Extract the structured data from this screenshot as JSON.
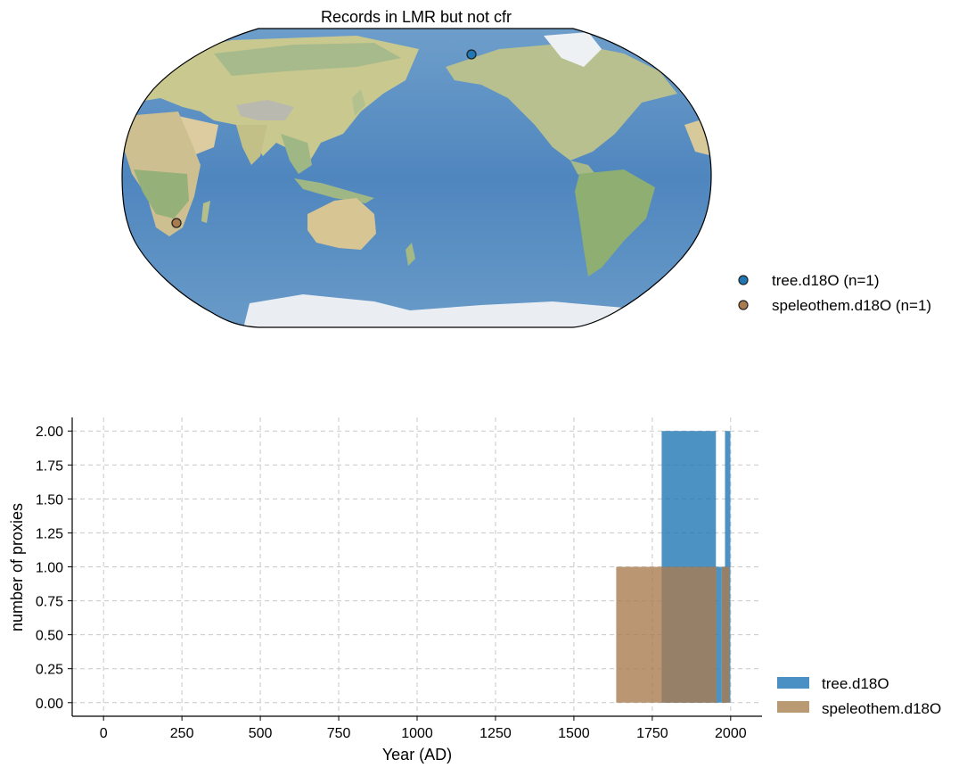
{
  "map": {
    "title": "Records in LMR but not cfr",
    "legend": [
      {
        "label": "tree.d18O (n=1)",
        "color": "#1f77b4"
      },
      {
        "label": "speleothem.d18O (n=1)",
        "color": "#a97c50"
      }
    ],
    "points": [
      {
        "archive": "tree.d18O",
        "lon": -155,
        "lat": 70,
        "color": "#1f77b4"
      },
      {
        "archive": "speleothem.d18O",
        "lon": 20,
        "lat": -27,
        "color": "#a97c50"
      }
    ],
    "projection": "Robinson (centered 180°)"
  },
  "chart_data": {
    "type": "bar",
    "xlabel": "Year (AD)",
    "ylabel": "number of proxies",
    "xlim": [
      -100,
      2100
    ],
    "ylim": [
      -0.1,
      2.1
    ],
    "xticks": [
      0,
      250,
      500,
      750,
      1000,
      1250,
      1500,
      1750,
      2000
    ],
    "xtick_labels": [
      "0",
      "250",
      "500",
      "750",
      "1000",
      "1250",
      "1500",
      "1750",
      "2000"
    ],
    "yticks": [
      0,
      0.25,
      0.5,
      0.75,
      1.0,
      1.25,
      1.5,
      1.75,
      2.0
    ],
    "ytick_labels": [
      "0.00",
      "0.25",
      "0.50",
      "0.75",
      "1.00",
      "1.25",
      "1.50",
      "1.75",
      "2.00"
    ],
    "grid": true,
    "legend_placement": "bottom-right outside",
    "series": [
      {
        "name": "tree.d18O",
        "color": "#1f77b4",
        "bins": [
          {
            "x0": 1780,
            "x1": 1953,
            "value": 2
          },
          {
            "x0": 1953,
            "x1": 1970,
            "value": 1
          },
          {
            "x0": 1970,
            "x1": 1982,
            "value": 1
          },
          {
            "x0": 1982,
            "x1": 1999,
            "value": 2
          }
        ]
      },
      {
        "name": "speleothem.d18O",
        "color": "#a97c50",
        "bins": [
          {
            "x0": 1635,
            "x1": 1955,
            "value": 1
          },
          {
            "x0": 1972,
            "x1": 1996,
            "value": 1
          }
        ]
      }
    ]
  }
}
